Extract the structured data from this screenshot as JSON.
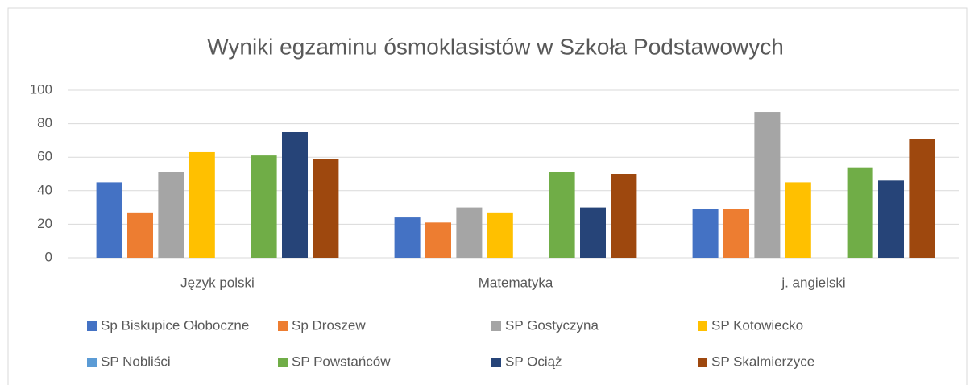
{
  "chart_data": {
    "type": "bar",
    "title": "Wyniki egzaminu ósmoklasistów w Szkoła Podstawowych",
    "categories": [
      "Język polski",
      "Matematyka",
      "j. angielski"
    ],
    "series": [
      {
        "name": "Sp Biskupice Ołoboczne",
        "color": "#4472c4",
        "values": [
          45,
          24,
          29
        ]
      },
      {
        "name": "Sp Droszew",
        "color": "#ed7d31",
        "values": [
          27,
          21,
          29
        ]
      },
      {
        "name": "SP Gostyczyna",
        "color": "#a5a5a5",
        "values": [
          51,
          30,
          87
        ]
      },
      {
        "name": "SP Kotowiecko",
        "color": "#ffc000",
        "values": [
          63,
          27,
          45
        ]
      },
      {
        "name": "SP Nobliści",
        "color": "#5b9bd5",
        "values": [
          null,
          null,
          null
        ]
      },
      {
        "name": "SP Powstańców",
        "color": "#70ad47",
        "values": [
          61,
          51,
          54
        ]
      },
      {
        "name": "SP Ociąż",
        "color": "#264478",
        "values": [
          75,
          30,
          46
        ]
      },
      {
        "name": "SP Skalmierzyce",
        "color": "#9e480e",
        "values": [
          59,
          50,
          71
        ]
      }
    ],
    "ylim": [
      0,
      100
    ],
    "yticks": [
      0,
      20,
      40,
      60,
      80,
      100
    ],
    "grid": true,
    "legend": "bottom"
  }
}
